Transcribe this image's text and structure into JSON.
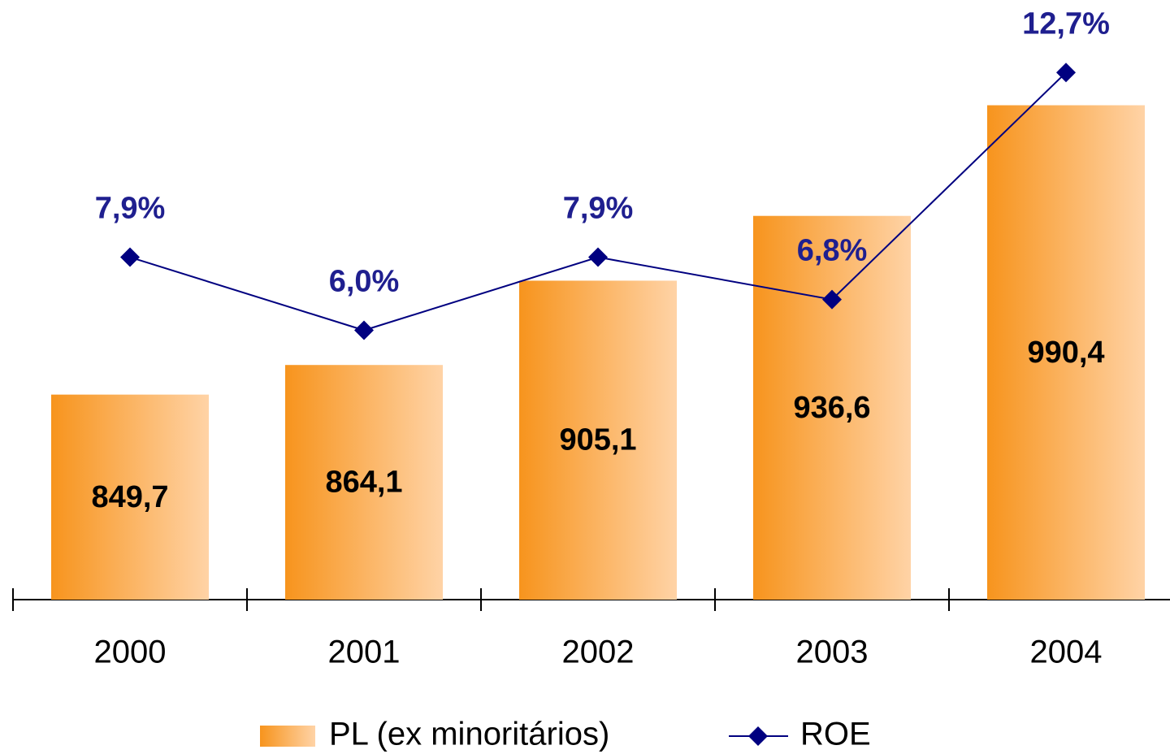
{
  "chart_data": {
    "type": "bar",
    "categories": [
      "2000",
      "2001",
      "2002",
      "2003",
      "2004"
    ],
    "series": [
      {
        "name": "PL (ex minoritários)",
        "type": "bar",
        "color": "#f7941d",
        "values": [
          849.7,
          864.1,
          905.1,
          936.6,
          990.4
        ],
        "value_labels": [
          "849,7",
          "864,1",
          "905,1",
          "936,6",
          "990,4"
        ]
      },
      {
        "name": "ROE",
        "type": "line",
        "axis": "y2",
        "color": "#000080",
        "values": [
          7.9,
          6.0,
          7.9,
          6.8,
          12.7
        ],
        "value_labels": [
          "7,9%",
          "6,0%",
          "7,9%",
          "6,8%",
          "12,7%"
        ]
      }
    ],
    "ylim": [
      750,
      1040
    ],
    "y2lim": [
      -1,
      14.5
    ]
  }
}
